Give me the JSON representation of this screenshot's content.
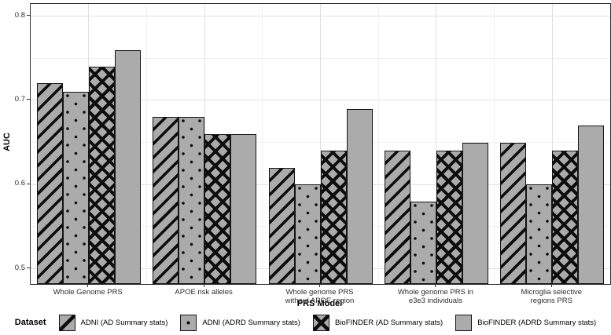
{
  "chart_data": {
    "type": "bar",
    "title": "",
    "xlabel": "PRS Model",
    "ylabel": "AUC",
    "ylim": [
      0.482,
      0.8145
    ],
    "ytick_labels": [
      "0.5",
      "0.6",
      "0.7",
      "0.8"
    ],
    "ytick_values": [
      0.5,
      0.6,
      0.7,
      0.8
    ],
    "yminor_values": [
      0.55,
      0.65,
      0.75
    ],
    "grid": true,
    "legend_title": "Dataset",
    "legend_position": "bottom",
    "categories": [
      "Whole Genome PRS",
      "APOE risk alleles",
      "Whole genome PRS\nwithout APOE region",
      "Whole genome PRS in\ne3e3 individuals",
      "Microglia selective\nregions PRS"
    ],
    "series": [
      {
        "name": "ADNI (AD Summary stats)",
        "pattern": "diagonal",
        "values": [
          0.72,
          0.68,
          0.62,
          0.64,
          0.65
        ]
      },
      {
        "name": "ADNI (ADRD Summary stats)",
        "pattern": "dots",
        "values": [
          0.71,
          0.68,
          0.6,
          0.58,
          0.6
        ]
      },
      {
        "name": "BioFINDER (AD Summary stats)",
        "pattern": "crosshatch",
        "values": [
          0.74,
          0.66,
          0.64,
          0.64,
          0.64
        ]
      },
      {
        "name": "BioFINDER (ADRD Summary stats)",
        "pattern": "solid",
        "values": [
          0.76,
          0.66,
          0.69,
          0.65,
          0.67
        ]
      }
    ]
  },
  "colors": {
    "bar_fill": "#ababab",
    "bar_border": "#141414",
    "grid_major": "#e0e0e0",
    "grid_minor": "#f0f0f0",
    "panel_border": "#2e2e2e",
    "text": "#2e2e2e"
  }
}
